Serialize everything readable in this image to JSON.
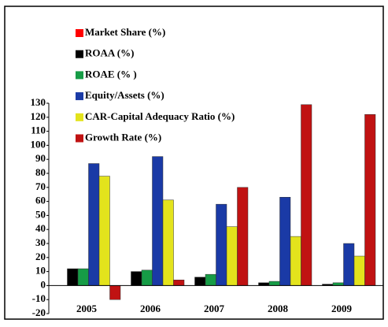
{
  "chart_data": {
    "type": "bar",
    "categories": [
      "2005",
      "2006",
      "2007",
      "2008",
      "2009"
    ],
    "series": [
      {
        "name": "Market Share (%)",
        "color": "#ff0000",
        "values": [
          0,
          0,
          0,
          0,
          0
        ]
      },
      {
        "name": "ROAA (%)",
        "color": "#000000",
        "values": [
          12,
          10,
          6,
          2,
          1
        ]
      },
      {
        "name": "ROAE (% )",
        "color": "#169c46",
        "values": [
          12,
          11,
          8,
          3,
          2
        ]
      },
      {
        "name": "Equity/Assets (%)",
        "color": "#1a3aa6",
        "values": [
          87,
          92,
          58,
          63,
          30
        ]
      },
      {
        "name": "CAR-Capital Adequacy Ratio (%)",
        "color": "#e3e31c",
        "values": [
          78,
          61,
          42,
          35,
          21
        ]
      },
      {
        "name": "Growth Rate (%)",
        "color": "#c01212",
        "values": [
          -10,
          4,
          70,
          129,
          122
        ]
      }
    ],
    "ylim": [
      -20,
      130
    ],
    "yticks": [
      -20,
      -10,
      0,
      10,
      20,
      30,
      40,
      50,
      60,
      70,
      80,
      90,
      100,
      110,
      120,
      130
    ],
    "grid": false
  }
}
